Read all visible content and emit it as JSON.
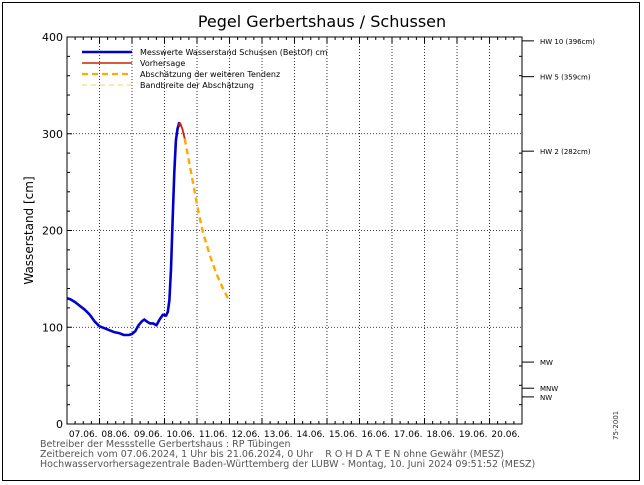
{
  "chart_data": {
    "type": "line",
    "title": "Pegel Gerbertshaus / Schussen",
    "ylabel": "Wasserstand [cm]",
    "xlabel": "",
    "ylim": [
      0,
      400
    ],
    "y_ticks": [
      0,
      100,
      200,
      300,
      400
    ],
    "categories": [
      "07.06.",
      "08.06.",
      "09.06.",
      "10.06.",
      "11.06.",
      "12.06.",
      "13.06.",
      "14.06.",
      "15.06.",
      "16.06.",
      "17.06.",
      "18.06.",
      "19.06.",
      "20.06."
    ],
    "grid": true,
    "legend_position": "top-left",
    "thresholds": [
      {
        "label": "HW 10 (396cm)",
        "value": 396
      },
      {
        "label": "HW 5 (359cm)",
        "value": 359
      },
      {
        "label": "HW 2 (282cm)",
        "value": 282
      },
      {
        "label": "MW",
        "value": 64
      },
      {
        "label": "MNW",
        "value": 37
      },
      {
        "label": "NW",
        "value": 28
      }
    ],
    "series": [
      {
        "name": "Messwerte Wasserstand Schussen   (BestOf)   cm",
        "color": "#0000cc",
        "style": "solid",
        "points": [
          [
            0.0,
            130
          ],
          [
            0.1,
            129
          ],
          [
            0.25,
            126
          ],
          [
            0.4,
            122
          ],
          [
            0.55,
            118
          ],
          [
            0.7,
            113
          ],
          [
            0.85,
            106
          ],
          [
            1.0,
            101
          ],
          [
            1.15,
            99
          ],
          [
            1.3,
            97
          ],
          [
            1.45,
            95
          ],
          [
            1.6,
            94
          ],
          [
            1.75,
            92
          ],
          [
            1.9,
            92
          ],
          [
            2.0,
            93
          ],
          [
            2.1,
            96
          ],
          [
            2.2,
            102
          ],
          [
            2.3,
            106
          ],
          [
            2.38,
            108
          ],
          [
            2.45,
            106
          ],
          [
            2.55,
            104
          ],
          [
            2.65,
            104
          ],
          [
            2.75,
            102
          ],
          [
            2.85,
            108
          ],
          [
            2.95,
            113
          ],
          [
            3.05,
            112
          ],
          [
            3.1,
            116
          ],
          [
            3.15,
            128
          ],
          [
            3.2,
            160
          ],
          [
            3.25,
            210
          ],
          [
            3.3,
            260
          ],
          [
            3.35,
            293
          ],
          [
            3.4,
            305
          ],
          [
            3.45,
            311
          ],
          [
            3.5,
            308
          ]
        ]
      },
      {
        "name": "Vorhersage",
        "color": "#cc2200",
        "style": "solid",
        "points": [
          [
            3.42,
            308
          ],
          [
            3.48,
            311
          ],
          [
            3.55,
            305
          ],
          [
            3.62,
            295
          ]
        ]
      },
      {
        "name": "Abschätzung der weiteren Tendenz",
        "color": "#ffaa00",
        "style": "dashed",
        "points": [
          [
            3.62,
            295
          ],
          [
            3.75,
            272
          ],
          [
            3.9,
            245
          ],
          [
            4.05,
            218
          ],
          [
            4.2,
            196
          ],
          [
            4.4,
            174
          ],
          [
            4.6,
            155
          ],
          [
            4.8,
            140
          ],
          [
            4.95,
            130
          ]
        ]
      },
      {
        "name": "Bandbreite der Abschätzung",
        "color": "#ffcc66",
        "style": "dashed-thin",
        "points": []
      }
    ]
  },
  "footer": {
    "line1": "Betreiber der Messstelle Gerbertshaus : RP Tübingen",
    "line2": "Zeitbereich vom 07.06.2024, 1 Uhr bis 21.06.2024, 0 Uhr    R O H D A T E N ohne Gewähr (MESZ)",
    "line3": "Hochwasservorhersagezentrale Baden-Württemberg der LUBW - Montag, 10. Juni 2024 09:51:52 (MESZ)"
  },
  "side_code": "75-2001"
}
